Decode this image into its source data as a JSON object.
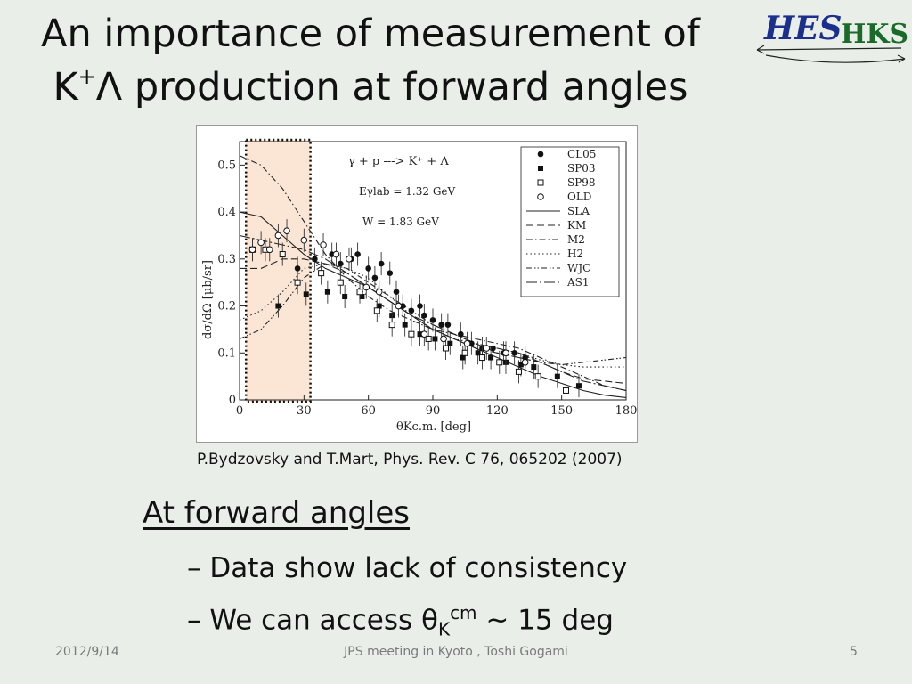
{
  "slide": {
    "title_line1": "An importance of measurement of",
    "title_line2_prefix": "K",
    "title_line2_sup": "+",
    "title_line2_rest": "Λ production at forward angles",
    "logo_text_1": "HES",
    "logo_text_2": "HKS",
    "citation": "P.Bydzovsky and T.Mart, Phys. Rev. C 76, 065202 (2007)",
    "heading": "At forward angles",
    "bullet1": "– Data show lack of consistency",
    "bullet2_prefix": "– We can access   θ",
    "bullet2_sub": "K",
    "bullet2_sup": "cm",
    "bullet2_suffix": " ~ 15 deg",
    "footer_date": "2012/9/14",
    "footer_center": "JPS meeting in Kyoto , Toshi Gogami",
    "footer_page": "5"
  },
  "chart_data": {
    "type": "scatter",
    "annotation_reaction": "γ + p ---> K⁺ + Λ",
    "annotation_energy": "Eγlab = 1.32 GeV",
    "annotation_W": "W = 1.83 GeV",
    "xlabel": "θKc.m.  [deg]",
    "ylabel": "dσ/dΩ  [μb/sr]",
    "xlim": [
      0,
      180
    ],
    "ylim": [
      0,
      0.55
    ],
    "xticks": [
      "0",
      "30",
      "60",
      "90",
      "120",
      "150",
      "180"
    ],
    "yticks": [
      "0",
      "0.1",
      "0.2",
      "0.3",
      "0.4",
      "0.5"
    ],
    "highlight_region": [
      3,
      33
    ],
    "legend_position": "top-right",
    "series": [
      {
        "name": "CL05",
        "marker": "filled-circle",
        "points": [
          [
            27,
            0.28
          ],
          [
            35,
            0.3
          ],
          [
            43,
            0.31
          ],
          [
            47,
            0.29
          ],
          [
            52,
            0.3
          ],
          [
            55,
            0.31
          ],
          [
            60,
            0.28
          ],
          [
            63,
            0.26
          ],
          [
            66,
            0.29
          ],
          [
            70,
            0.27
          ],
          [
            73,
            0.23
          ],
          [
            76,
            0.2
          ],
          [
            80,
            0.19
          ],
          [
            84,
            0.2
          ],
          [
            86,
            0.18
          ],
          [
            90,
            0.17
          ],
          [
            94,
            0.16
          ],
          [
            97,
            0.16
          ],
          [
            103,
            0.14
          ],
          [
            108,
            0.12
          ],
          [
            113,
            0.11
          ],
          [
            118,
            0.11
          ],
          [
            123,
            0.1
          ],
          [
            128,
            0.1
          ],
          [
            133,
            0.09
          ]
        ]
      },
      {
        "name": "SP03",
        "marker": "filled-square",
        "points": [
          [
            18,
            0.2
          ],
          [
            31,
            0.225
          ],
          [
            41,
            0.23
          ],
          [
            49,
            0.22
          ],
          [
            57,
            0.22
          ],
          [
            65,
            0.2
          ],
          [
            71,
            0.18
          ],
          [
            77,
            0.16
          ],
          [
            84,
            0.14
          ],
          [
            91,
            0.13
          ],
          [
            98,
            0.12
          ],
          [
            104,
            0.09
          ],
          [
            111,
            0.1
          ],
          [
            117,
            0.09
          ],
          [
            124,
            0.08
          ],
          [
            131,
            0.075
          ],
          [
            137,
            0.07
          ],
          [
            148,
            0.05
          ],
          [
            158,
            0.03
          ]
        ]
      },
      {
        "name": "SP98",
        "marker": "open-square",
        "points": [
          [
            6,
            0.32
          ],
          [
            12,
            0.32
          ],
          [
            20,
            0.31
          ],
          [
            27,
            0.25
          ],
          [
            38,
            0.27
          ],
          [
            47,
            0.25
          ],
          [
            56,
            0.23
          ],
          [
            64,
            0.19
          ],
          [
            71,
            0.16
          ],
          [
            80,
            0.14
          ],
          [
            88,
            0.13
          ],
          [
            96,
            0.11
          ],
          [
            105,
            0.1
          ],
          [
            113,
            0.09
          ],
          [
            121,
            0.08
          ],
          [
            130,
            0.06
          ],
          [
            139,
            0.05
          ],
          [
            152,
            0.02
          ]
        ]
      },
      {
        "name": "OLD",
        "marker": "open-circle",
        "points": [
          [
            6,
            0.32
          ],
          [
            10,
            0.335
          ],
          [
            14,
            0.32
          ],
          [
            18,
            0.35
          ],
          [
            22,
            0.36
          ],
          [
            30,
            0.34
          ],
          [
            39,
            0.33
          ],
          [
            45,
            0.31
          ],
          [
            51,
            0.3
          ],
          [
            59,
            0.24
          ],
          [
            65,
            0.23
          ],
          [
            74,
            0.2
          ],
          [
            86,
            0.14
          ],
          [
            95,
            0.13
          ],
          [
            106,
            0.12
          ],
          [
            115,
            0.11
          ],
          [
            124,
            0.1
          ],
          [
            133,
            0.08
          ]
        ]
      }
    ],
    "models": [
      {
        "name": "SLA",
        "style": "solid",
        "points": [
          [
            0,
            0.4
          ],
          [
            10,
            0.39
          ],
          [
            20,
            0.35
          ],
          [
            30,
            0.31
          ],
          [
            40,
            0.28
          ],
          [
            50,
            0.26
          ],
          [
            60,
            0.24
          ],
          [
            70,
            0.21
          ],
          [
            80,
            0.18
          ],
          [
            90,
            0.15
          ],
          [
            100,
            0.13
          ],
          [
            110,
            0.11
          ],
          [
            120,
            0.09
          ],
          [
            130,
            0.07
          ],
          [
            140,
            0.05
          ],
          [
            150,
            0.035
          ],
          [
            160,
            0.02
          ],
          [
            170,
            0.01
          ],
          [
            180,
            0.005
          ]
        ]
      },
      {
        "name": "KM",
        "style": "dashed",
        "points": [
          [
            0,
            0.28
          ],
          [
            10,
            0.28
          ],
          [
            20,
            0.3
          ],
          [
            30,
            0.3
          ],
          [
            40,
            0.29
          ],
          [
            50,
            0.27
          ],
          [
            60,
            0.24
          ],
          [
            70,
            0.21
          ],
          [
            80,
            0.18
          ],
          [
            90,
            0.15
          ],
          [
            100,
            0.13
          ],
          [
            110,
            0.11
          ],
          [
            120,
            0.1
          ],
          [
            130,
            0.09
          ],
          [
            140,
            0.08
          ],
          [
            150,
            0.06
          ],
          [
            160,
            0.045
          ],
          [
            170,
            0.04
          ],
          [
            180,
            0.035
          ]
        ]
      },
      {
        "name": "M2",
        "style": "dash-dot",
        "points": [
          [
            0,
            0.52
          ],
          [
            10,
            0.5
          ],
          [
            20,
            0.45
          ],
          [
            30,
            0.38
          ],
          [
            40,
            0.31
          ],
          [
            50,
            0.26
          ],
          [
            60,
            0.22
          ],
          [
            70,
            0.19
          ],
          [
            80,
            0.17
          ],
          [
            90,
            0.15
          ],
          [
            100,
            0.14
          ],
          [
            110,
            0.13
          ],
          [
            120,
            0.12
          ],
          [
            130,
            0.11
          ],
          [
            140,
            0.09
          ],
          [
            150,
            0.07
          ],
          [
            160,
            0.05
          ],
          [
            170,
            0.03
          ],
          [
            180,
            0.02
          ]
        ]
      },
      {
        "name": "H2",
        "style": "dotted",
        "points": [
          [
            0,
            0.17
          ],
          [
            10,
            0.19
          ],
          [
            20,
            0.23
          ],
          [
            30,
            0.28
          ],
          [
            40,
            0.29
          ],
          [
            50,
            0.28
          ],
          [
            60,
            0.26
          ],
          [
            70,
            0.22
          ],
          [
            80,
            0.18
          ],
          [
            90,
            0.15
          ],
          [
            100,
            0.13
          ],
          [
            110,
            0.12
          ],
          [
            120,
            0.11
          ],
          [
            130,
            0.1
          ],
          [
            140,
            0.085
          ],
          [
            150,
            0.075
          ],
          [
            160,
            0.07
          ],
          [
            170,
            0.07
          ],
          [
            180,
            0.07
          ]
        ]
      },
      {
        "name": "WJC",
        "style": "dash-dot-dot",
        "points": [
          [
            0,
            0.13
          ],
          [
            10,
            0.15
          ],
          [
            20,
            0.2
          ],
          [
            30,
            0.26
          ],
          [
            40,
            0.29
          ],
          [
            50,
            0.28
          ],
          [
            60,
            0.25
          ],
          [
            70,
            0.22
          ],
          [
            80,
            0.19
          ],
          [
            90,
            0.16
          ],
          [
            100,
            0.14
          ],
          [
            110,
            0.12
          ],
          [
            120,
            0.1
          ],
          [
            130,
            0.09
          ],
          [
            140,
            0.08
          ],
          [
            150,
            0.075
          ],
          [
            160,
            0.08
          ],
          [
            170,
            0.085
          ],
          [
            180,
            0.09
          ]
        ]
      },
      {
        "name": "AS1",
        "style": "long-dash-dot",
        "points": [
          [
            0,
            0.35
          ],
          [
            10,
            0.34
          ],
          [
            20,
            0.33
          ],
          [
            30,
            0.32
          ],
          [
            40,
            0.3
          ],
          [
            50,
            0.27
          ],
          [
            60,
            0.24
          ],
          [
            70,
            0.21
          ],
          [
            80,
            0.18
          ],
          [
            90,
            0.16
          ],
          [
            100,
            0.14
          ],
          [
            110,
            0.12
          ],
          [
            120,
            0.11
          ],
          [
            130,
            0.1
          ],
          [
            140,
            0.08
          ],
          [
            150,
            0.06
          ],
          [
            160,
            0.04
          ],
          [
            170,
            0.03
          ],
          [
            180,
            0.02
          ]
        ]
      }
    ],
    "colors": {
      "highlight_fill": "#fbe6d6",
      "axis": "#222222",
      "logo_blue": "#1b2f8c",
      "logo_red": "#c0191b",
      "logo_green": "#1a6a2a"
    }
  }
}
